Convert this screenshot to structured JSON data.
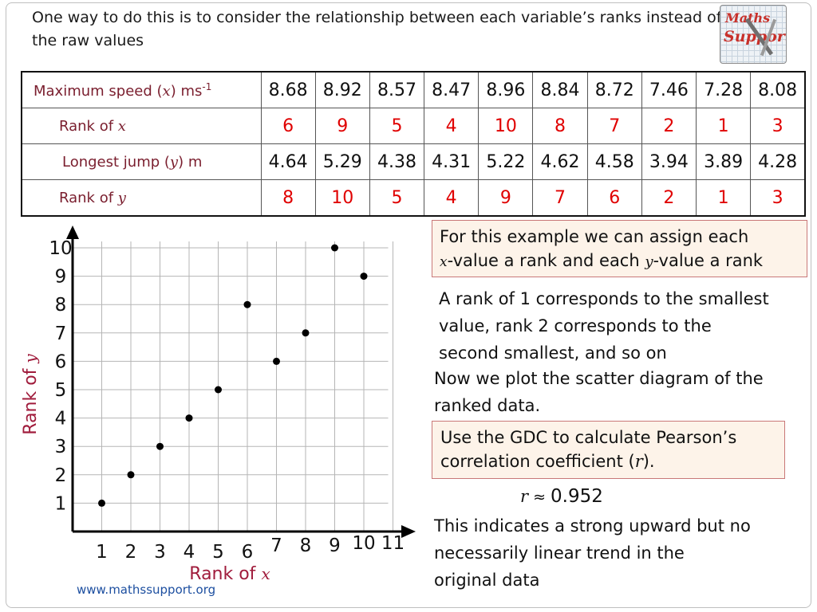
{
  "intro": {
    "line1": "One way to do this is to consider the relationship between each variable’s ranks instead of",
    "line2": "the raw values"
  },
  "logo": {
    "line1": "Maths",
    "line2": "Support"
  },
  "table": {
    "speed_label": "Maximum speed (",
    "speed_var": "x",
    "speed_unit": ") ms",
    "speed_sup": "-1",
    "rank_x_label": "Rank of ",
    "rank_x_var": "x",
    "jump_label": "Longest jump (",
    "jump_var": "y",
    "jump_unit": ") m",
    "rank_y_label": "Rank of ",
    "rank_y_var": "y",
    "speed": [
      "8.68",
      "8.92",
      "8.57",
      "8.47",
      "8.96",
      "8.84",
      "8.72",
      "7.46",
      "7.28",
      "8.08"
    ],
    "rank_x": [
      "6",
      "9",
      "5",
      "4",
      "10",
      "8",
      "7",
      "2",
      "1",
      "3"
    ],
    "jump": [
      "4.64",
      "5.29",
      "4.38",
      "4.31",
      "5.22",
      "4.62",
      "4.58",
      "3.94",
      "3.89",
      "4.28"
    ],
    "rank_y": [
      "8",
      "10",
      "5",
      "4",
      "9",
      "7",
      "6",
      "2",
      "1",
      "3"
    ]
  },
  "box1": {
    "line1": "For this example we can assign each",
    "var_x": "x",
    "line2a": "-value a rank  and each ",
    "var_y": "y",
    "line2b": "-value a rank"
  },
  "para1": {
    "line1": "A rank of 1 corresponds to the smallest",
    "line2": "value, rank 2 corresponds to the",
    "line3": "second smallest, and so on"
  },
  "para2": {
    "line1": "Now we plot the scatter diagram of the",
    "line2": "ranked data."
  },
  "box2": {
    "line1": "Use the GDC to calculate Pearson’s",
    "line2a": "correlation coefficient (",
    "var_r": "r",
    "line2b": ")."
  },
  "result": {
    "var": "r",
    "approx": " ≈ ",
    "value": "0.952"
  },
  "para3": {
    "line1": "This indicates a strong upward but no",
    "line2": "necessarily linear trend in the",
    "line3": "original data"
  },
  "footer": {
    "url": "www.mathssupport.org"
  },
  "chart_data": {
    "type": "scatter",
    "xlabel": "Rank of ",
    "xlabel_var": "x",
    "ylabel": "Rank of ",
    "ylabel_var": "y",
    "x_ticks": [
      "1",
      "2",
      "3",
      "4",
      "5",
      "6",
      "7",
      "8",
      "9",
      "10",
      "11"
    ],
    "y_ticks": [
      "1",
      "2",
      "3",
      "4",
      "5",
      "6",
      "7",
      "8",
      "9",
      "10"
    ],
    "xlim": [
      0,
      11
    ],
    "ylim": [
      0,
      10
    ],
    "grid": true,
    "point_color": "#000000",
    "axis_label_color": "#a01c3c",
    "points": [
      {
        "x": 1,
        "y": 1
      },
      {
        "x": 2,
        "y": 2
      },
      {
        "x": 3,
        "y": 3
      },
      {
        "x": 4,
        "y": 4
      },
      {
        "x": 5,
        "y": 5
      },
      {
        "x": 6,
        "y": 8
      },
      {
        "x": 7,
        "y": 6
      },
      {
        "x": 8,
        "y": 7
      },
      {
        "x": 9,
        "y": 10
      },
      {
        "x": 10,
        "y": 9
      }
    ]
  }
}
